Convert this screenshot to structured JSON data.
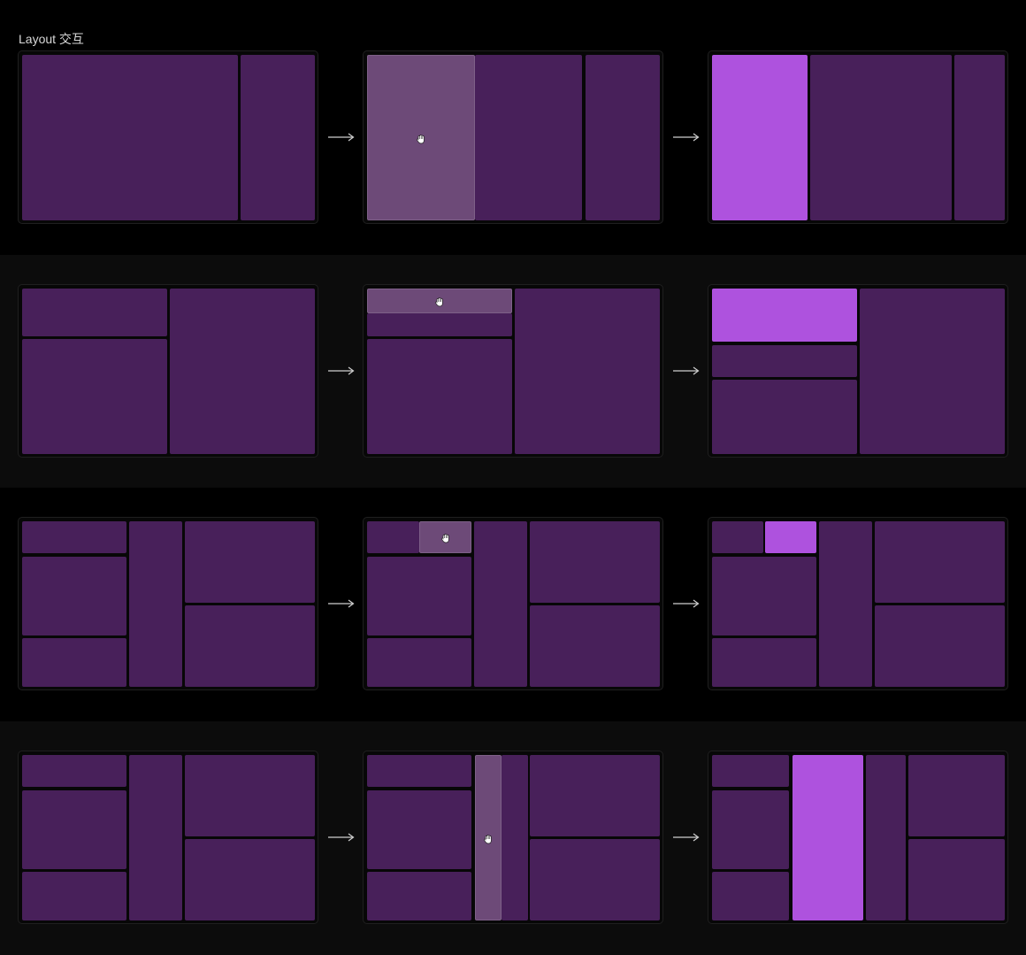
{
  "title": "Layout 交互",
  "colors": {
    "background": "#000000",
    "band_alt": "#0c0c0c",
    "cell": "#48205a",
    "cell_dragging": "#6d4a78",
    "cell_result": "#ae52de"
  },
  "icons": {
    "cursor": "grab-hand-icon",
    "connector": "arrow-right-icon"
  },
  "rows": [
    {
      "band": "#000000",
      "top": 0,
      "h": 288
    },
    {
      "band": "#0c0c0c",
      "top": 288,
      "h": 263
    },
    {
      "band": "#000000",
      "top": 551,
      "h": 264
    },
    {
      "band": "#0c0c0c",
      "top": 815,
      "h": 264
    }
  ]
}
